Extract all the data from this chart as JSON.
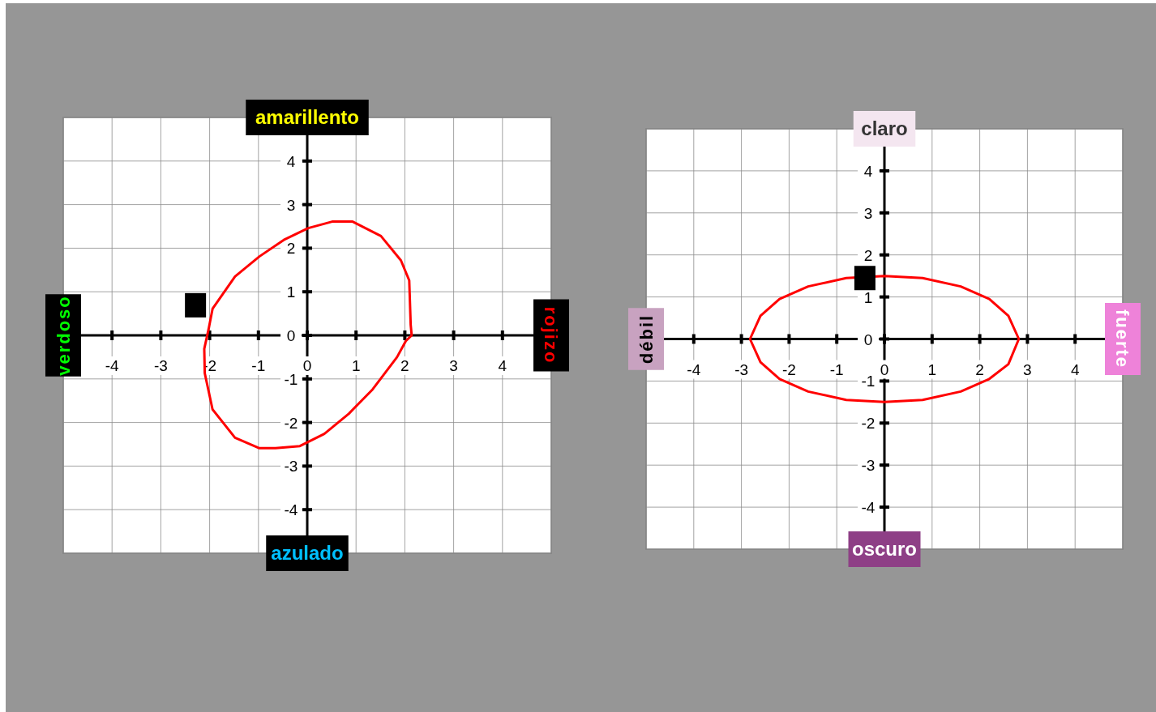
{
  "chart_data": [
    {
      "type": "scatter",
      "xlim": [
        -5,
        5
      ],
      "ylim": [
        -5,
        5
      ],
      "xticks": [
        -4,
        -3,
        -2,
        -1,
        0,
        1,
        2,
        3,
        4
      ],
      "yticks": [
        -4,
        -3,
        -2,
        -1,
        0,
        1,
        2,
        3,
        4
      ],
      "grid": true,
      "series": [
        {
          "color": "#000000",
          "marker": "square",
          "x": [
            -2.29
          ],
          "values": [
            0.69
          ]
        }
      ],
      "annotations": [
        "amarillento",
        "azulado",
        "verdoso",
        "rojizo"
      ]
    },
    {
      "type": "scatter",
      "xlim": [
        -5,
        5
      ],
      "ylim": [
        -5,
        5
      ],
      "xticks": [
        -4,
        -3,
        -2,
        -1,
        0,
        1,
        2,
        3,
        4
      ],
      "yticks": [
        -4,
        -3,
        -2,
        -1,
        0,
        1,
        2,
        3,
        4
      ],
      "grid": true,
      "series": [
        {
          "color": "#000000",
          "marker": "square",
          "x": [
            -0.41
          ],
          "values": [
            1.45
          ]
        }
      ],
      "annotations": [
        "claro",
        "oscuro",
        "débil",
        "fuerte"
      ]
    }
  ]
}
